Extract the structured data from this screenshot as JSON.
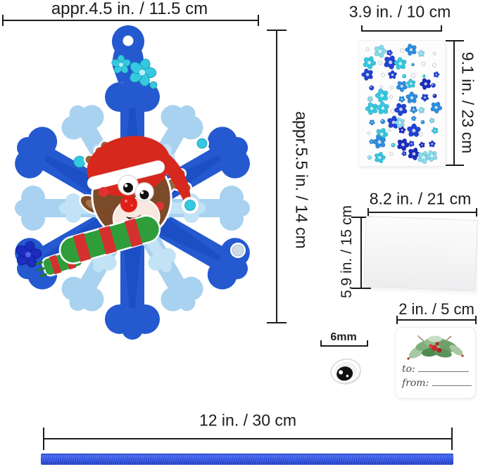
{
  "measurements": {
    "snowflake_width": "appr.4.5 in. / 11.5 cm",
    "snowflake_height": "appr.5.5 in. / 14 cm",
    "sticker_sheet_width": "3.9 in. / 10 cm",
    "sticker_sheet_height": "9.1 in. / 23 cm",
    "adhesive_sheet_width": "8.2 in. / 21 cm",
    "adhesive_sheet_height": "5.9 in. / 15 cm",
    "googly_eye_size": "6mm",
    "gift_tag_size": "2 in. / 5 cm",
    "ribbon_length": "12 in. / 30 cm"
  },
  "gift_tag": {
    "to_label": "to:",
    "from_label": "from:"
  },
  "colors": {
    "foam_dark_blue": "#2459cf",
    "foam_inner_blue": "#1c4ec4",
    "foam_light_blue": "#a8d2ef",
    "foam_center_blue": "#c2e2f6",
    "ribbon_blue": "#2b50e6",
    "hat_red": "#d7281e",
    "scarf_green": "#2f9e3a",
    "scarf_stripe_red": "#d43030",
    "reindeer_brown": "#7b4a28",
    "antler_tan": "#96663d",
    "gem_teal": "#35c9df",
    "gem_navy": "#1b2cbe",
    "gem_silver": "#ccd9e6",
    "measure_line": "#1c1c1c",
    "gem_palette": [
      "#35c9df",
      "#2143d6",
      "#2b8fe0",
      "#1b2cbe",
      "#86dcec",
      "#2143d6",
      "#35c9df",
      "#2b8fe0"
    ]
  }
}
